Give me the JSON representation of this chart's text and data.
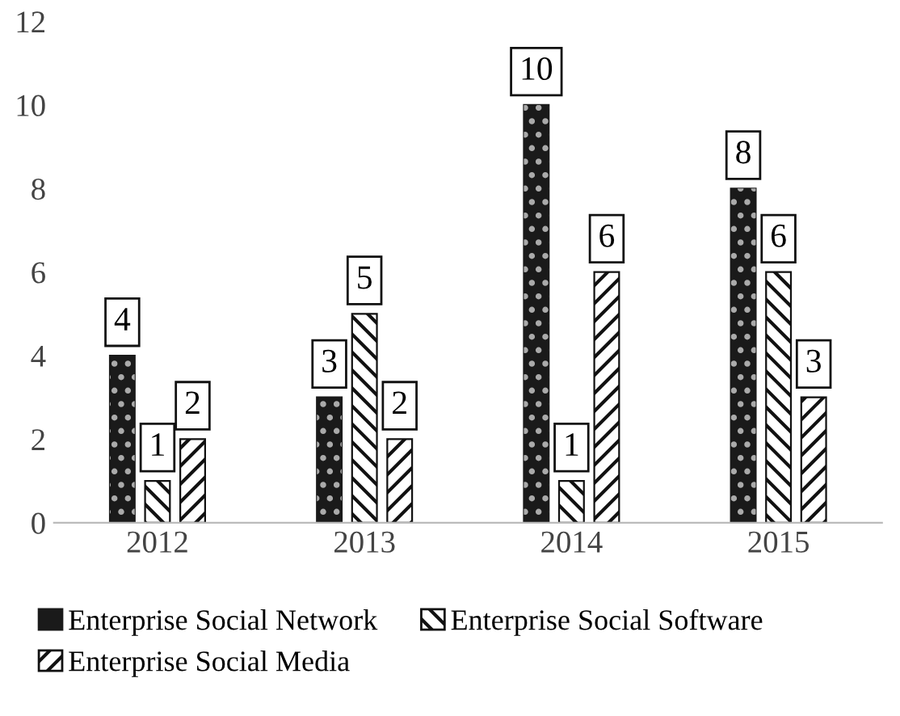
{
  "chart_data": {
    "type": "bar",
    "categories": [
      "2012",
      "2013",
      "2014",
      "2015"
    ],
    "series": [
      {
        "name": "Enterprise Social Network",
        "color": "#1a1a1a",
        "values": [
          4,
          3,
          10,
          8
        ]
      },
      {
        "name": "Enterprise Social Software",
        "color": "#111111",
        "values": [
          1,
          5,
          1,
          6
        ]
      },
      {
        "name": "Enterprise Social Media",
        "color": "#111111",
        "values": [
          2,
          2,
          6,
          3
        ]
      }
    ],
    "ylim": [
      0,
      12
    ],
    "yticks": [
      0,
      2,
      4,
      6,
      8,
      10,
      12
    ],
    "grid": false,
    "legend": "bottom",
    "data_labels": true
  }
}
